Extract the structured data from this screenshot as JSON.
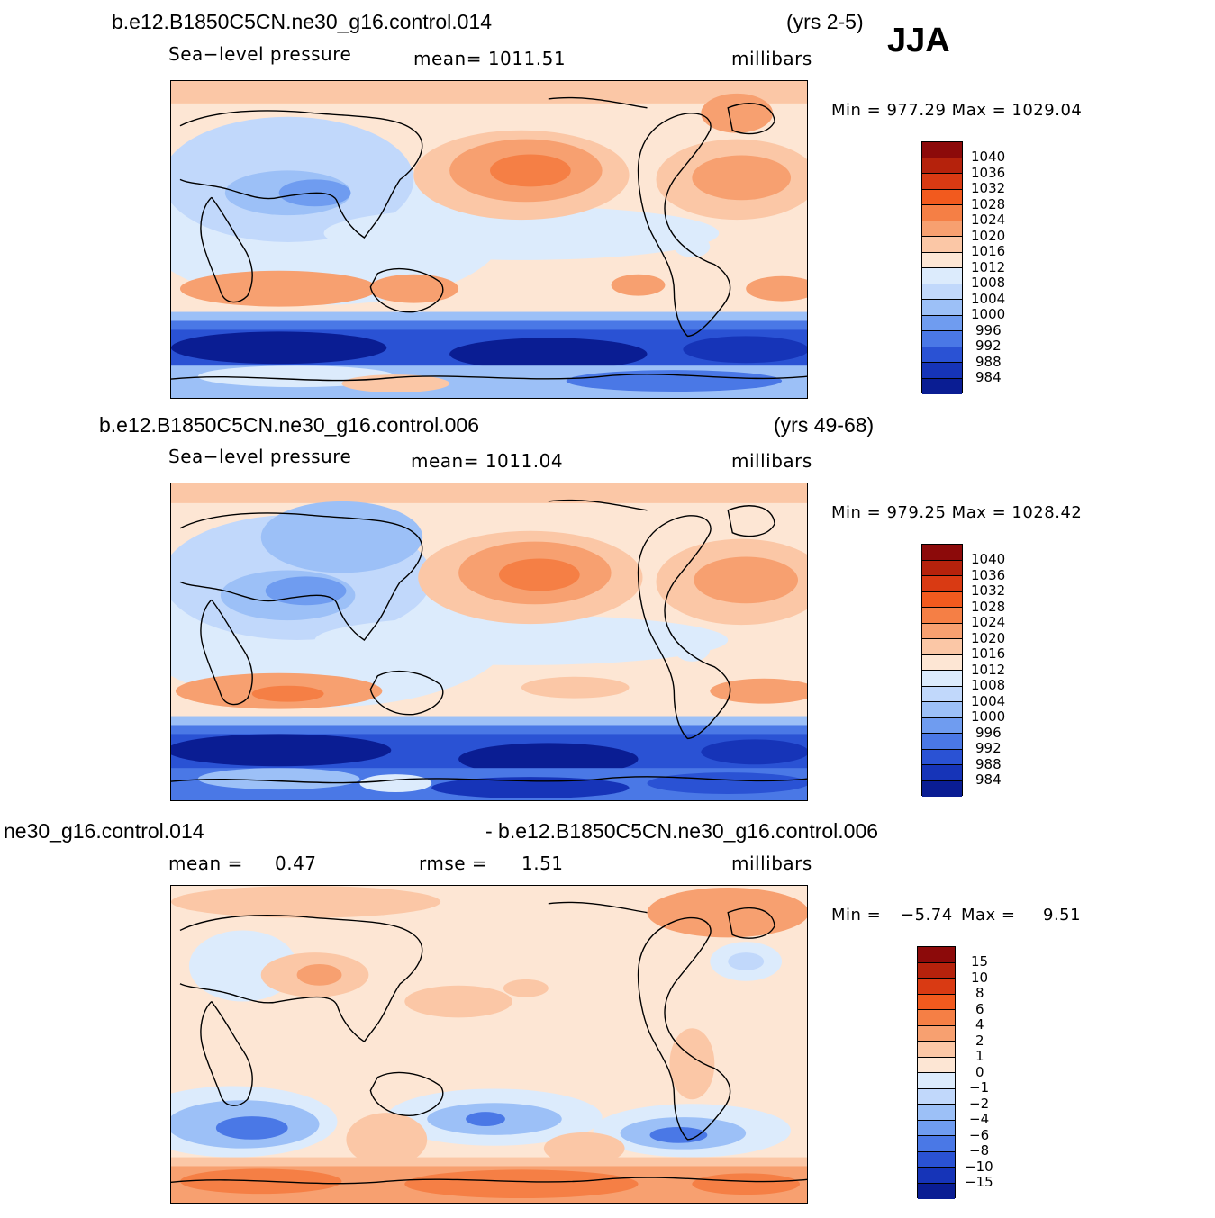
{
  "season": "JJA",
  "units_label": "millibars",
  "panels": [
    {
      "title_left": "b.e12.B1850C5CN.ne30_g16.control.014",
      "title_right": "(yrs 2-5)",
      "variable": "Sea−level pressure",
      "mean_text": "mean=  1011.51",
      "units": "millibars",
      "minmax_text": "Min  =  977.29  Max  =  1029.04"
    },
    {
      "title_left": "b.e12.B1850C5CN.ne30_g16.control.006",
      "title_right": "(yrs 49-68)",
      "variable": "Sea−level pressure",
      "mean_text": "mean=  1011.04",
      "units": "millibars",
      "minmax_text": "Min  =  979.25  Max  =  1028.42"
    },
    {
      "title_left": "ne30_g16.control.014",
      "title_right": "- b.e12.B1850C5CN.ne30_g16.control.006",
      "mean_label": "mean  =",
      "mean_value": "0.47",
      "rmse_label": "rmse  =",
      "rmse_value": "1.51",
      "units": "millibars",
      "min_label": "Min  =",
      "min_value": "−5.74",
      "max_label": "Max  =",
      "max_value": "9.51"
    }
  ],
  "colorbar_levels": [
    "1040",
    "1036",
    "1032",
    "1028",
    "1024",
    "1020",
    "1016",
    "1012",
    "1008",
    "1004",
    "1000",
    "996",
    "992",
    "988",
    "984"
  ],
  "colorbar_diff_levels": [
    "15",
    "10",
    "8",
    "6",
    "4",
    "2",
    "1",
    "0",
    "−1",
    "−2",
    "−4",
    "−6",
    "−8",
    "−10",
    "−15"
  ],
  "colorbar_colors": [
    "#8c0a0a",
    "#b5220c",
    "#d93a13",
    "#f25a1e",
    "#f57f45",
    "#f7a070",
    "#fbc7a6",
    "#fde6d4",
    "#dcebfc",
    "#c1d8fb",
    "#9cc0f7",
    "#6f9cf0",
    "#4a78e6",
    "#2a52d4",
    "#1634b8",
    "#0a1d93"
  ],
  "colors": {
    "ocean_default": "#fde6d4",
    "high_dark": "#f25a1e",
    "high": "#f7a070",
    "high_light": "#fbc7a6",
    "low_light": "#dcebfc",
    "low": "#9cc0f7",
    "low_mid": "#4a78e6",
    "low_dark": "#0a1d93"
  }
}
